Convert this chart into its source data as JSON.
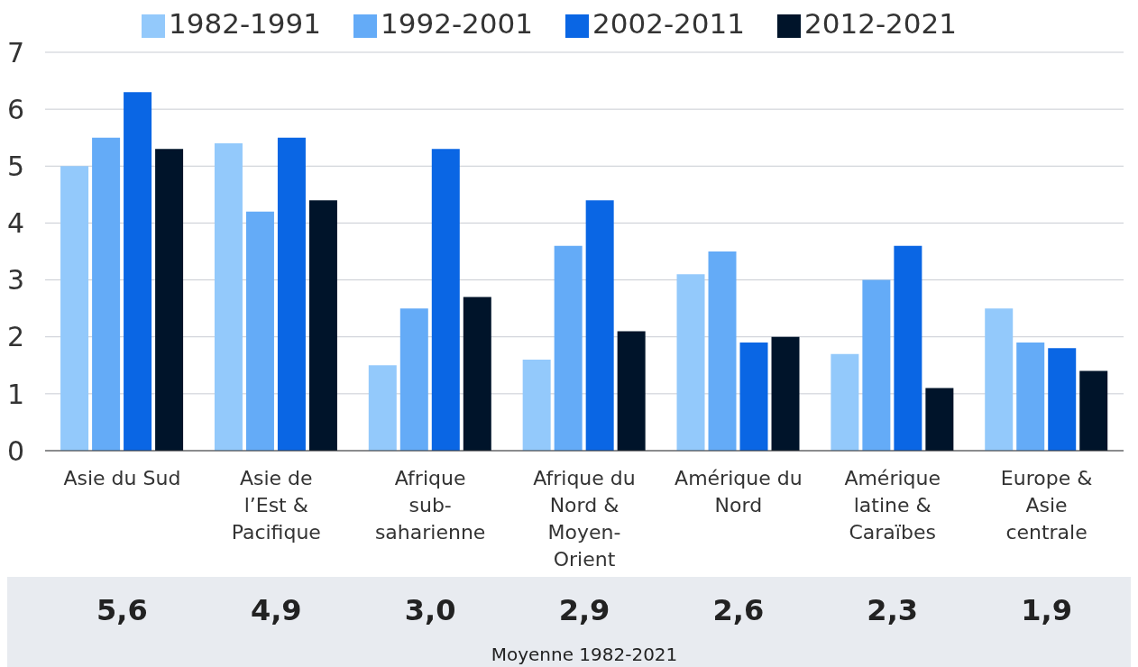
{
  "chart_data": {
    "type": "bar",
    "categories": [
      "Asie du Sud",
      "Asie de l’Est & Pacifique",
      "Afrique sub-saharienne",
      "Afrique du Nord & Moyen-Orient",
      "Amérique du Nord",
      "Amérique latine & Caraïbes",
      "Europe & Asie centrale"
    ],
    "series": [
      {
        "name": "1982-1991",
        "color": "#93c9fb",
        "values": [
          5.0,
          5.4,
          1.5,
          1.6,
          3.1,
          1.7,
          2.5
        ]
      },
      {
        "name": "1992-2001",
        "color": "#64abf7",
        "values": [
          5.5,
          4.2,
          2.5,
          3.6,
          3.5,
          3.0,
          1.9
        ]
      },
      {
        "name": "2002-2011",
        "color": "#0a66e4",
        "values": [
          6.3,
          5.5,
          5.3,
          4.4,
          1.9,
          3.6,
          1.8
        ]
      },
      {
        "name": "2012-2021",
        "color": "#00142a",
        "values": [
          5.3,
          4.4,
          2.7,
          2.1,
          2.0,
          1.1,
          1.4
        ]
      }
    ],
    "ylim": [
      0,
      7
    ],
    "yticks": [
      0,
      1,
      2,
      3,
      4,
      5,
      6,
      7
    ],
    "grid": "y",
    "legend": "top",
    "annotations": [
      "5,6",
      "4,9",
      "3,0",
      "2,9",
      "2,6",
      "2,3",
      "1,9",
      "Moyenne 1982-2021"
    ]
  }
}
